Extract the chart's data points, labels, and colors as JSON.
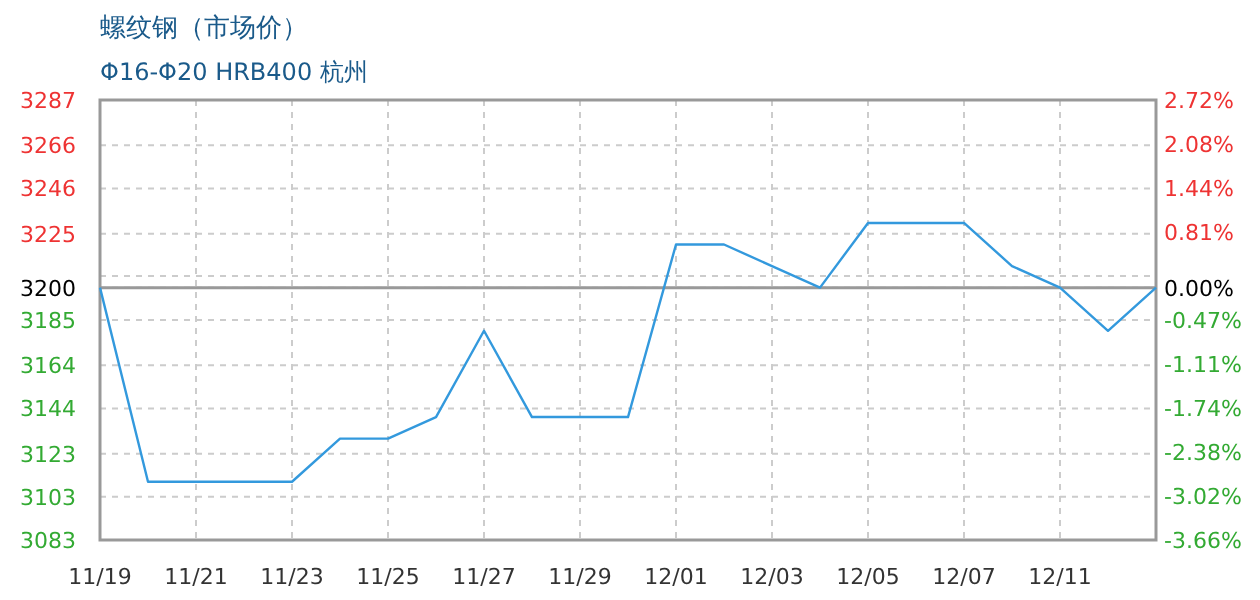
{
  "chart_data": {
    "type": "line",
    "title": "螺纹钢（市场价）",
    "subtitle": "Φ16-Φ20 HRB400 杭州",
    "categories": [
      "11/19",
      null,
      "11/21",
      null,
      "11/23",
      null,
      "11/25",
      null,
      "11/27",
      null,
      "11/29",
      null,
      "12/01",
      null,
      "12/03",
      null,
      "12/05",
      null,
      "12/07",
      null,
      "12/11",
      null,
      null
    ],
    "series": [
      {
        "color": "#3399dd",
        "values": [
          3200,
          3110,
          3110,
          3110,
          3110,
          3130,
          3130,
          3140,
          3180,
          3140,
          3140,
          3140,
          3220,
          3220,
          3210,
          3200,
          3230,
          3230,
          3230,
          3210,
          3200,
          3180,
          3200
        ]
      }
    ],
    "ylim": [
      3083,
      3287
    ],
    "yticks": [
      3083,
      3103,
      3123,
      3144,
      3164,
      3185,
      3200,
      {
        "value": 3205.4,
        "label": null
      },
      3225,
      3246,
      3266,
      3287
    ],
    "y2lim": [
      -3.66,
      2.72
    ],
    "y2ticks": [
      {
        "value": -3.66,
        "label": "-3.66%"
      },
      {
        "value": -3.02,
        "label": "-3.02%"
      },
      {
        "value": -2.38,
        "label": "-2.38%"
      },
      {
        "value": -1.74,
        "label": "-1.74%"
      },
      {
        "value": -1.11,
        "label": "-1.11%"
      },
      {
        "value": -0.47,
        "label": "-0.47%"
      },
      {
        "value": 0,
        "label": "0.00%"
      },
      {
        "value": 0.81,
        "label": "0.81%"
      },
      {
        "value": 1.44,
        "label": "1.44%"
      },
      {
        "value": 2.08,
        "label": "2.08%"
      },
      {
        "value": 2.72,
        "label": "2.72%"
      }
    ],
    "ref_lines": [
      {
        "axis": "y",
        "value": 3200,
        "color": "#999999"
      }
    ],
    "grid": true,
    "marker": "none",
    "line_style": "solid"
  }
}
